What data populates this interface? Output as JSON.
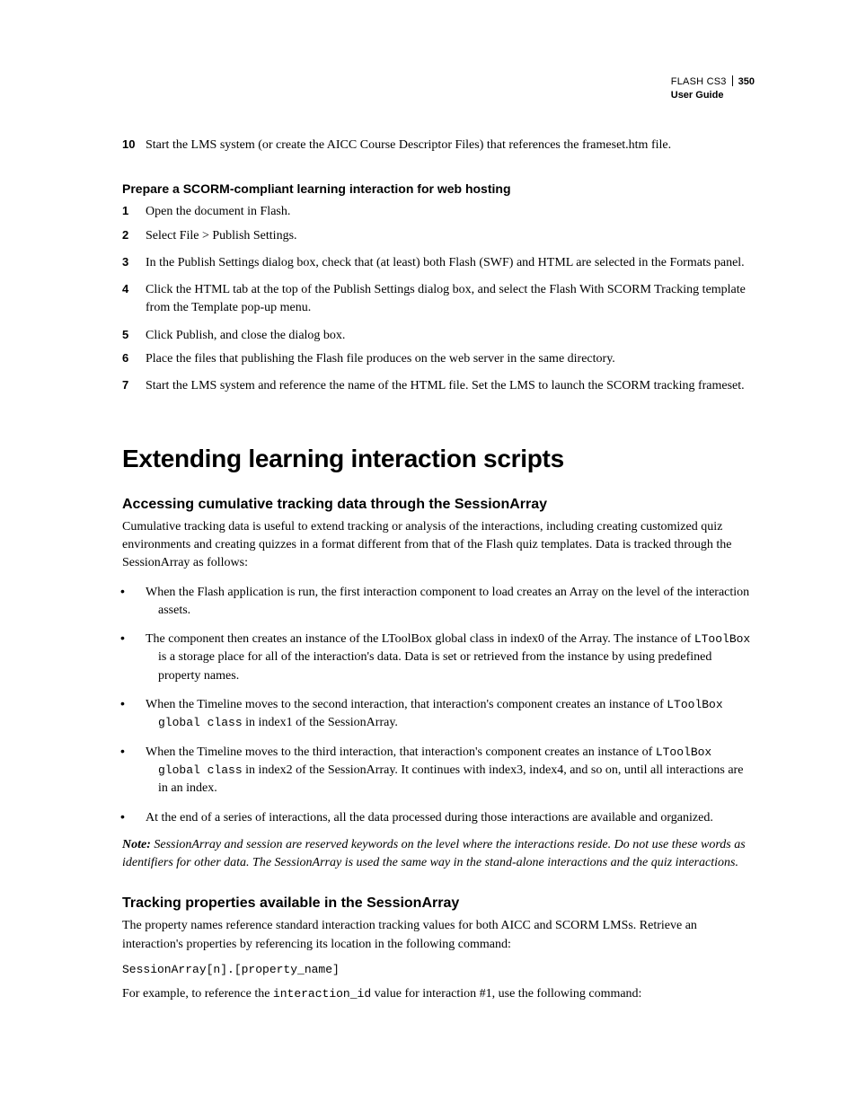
{
  "header": {
    "product": "FLASH CS3",
    "page_number": "350",
    "subtitle": "User Guide"
  },
  "intro_step": {
    "num": "10",
    "text": "Start the LMS system (or create the AICC Course Descriptor Files) that references the frameset.htm file."
  },
  "scorm_section": {
    "heading": "Prepare a SCORM-compliant learning interaction for web hosting",
    "steps": [
      {
        "num": "1",
        "text": "Open the document in Flash."
      },
      {
        "num": "2",
        "text": "Select File > Publish Settings."
      },
      {
        "num": "3",
        "text": "In the Publish Settings dialog box, check that (at least) both Flash (SWF) and HTML are selected in the Formats panel."
      },
      {
        "num": "4",
        "text": "Click the HTML tab at the top of the Publish Settings dialog box, and select the Flash With SCORM Tracking template from the Template pop-up menu."
      },
      {
        "num": "5",
        "text": "Click Publish, and close the dialog box."
      },
      {
        "num": "6",
        "text": "Place the files that publishing the Flash file produces on the web server in the same directory."
      },
      {
        "num": "7",
        "text": "Start the LMS system and reference the name of the HTML file. Set the LMS to launch the SCORM tracking frameset."
      }
    ]
  },
  "h1": "Extending learning interaction scripts",
  "sessionarray": {
    "heading": "Accessing cumulative tracking data through the SessionArray",
    "intro": "Cumulative tracking data is useful to extend tracking or analysis of the interactions, including creating customized quiz environments and creating quizzes in a format different from that of the Flash quiz templates. Data is tracked through the SessionArray as follows:",
    "bullets": {
      "b0": "When the Flash application is run, the first interaction component to load creates an Array on the level of the interaction assets.",
      "b1_a": "The component then creates an instance of the LToolBox global class in index0 of the Array. The instance of ",
      "b1_code": "LToolBox",
      "b1_b": " is a storage place for all of the interaction's data. Data is set or retrieved from the instance by using predefined property names.",
      "b2_a": "When the Timeline moves to the second interaction, that interaction's component creates an instance of ",
      "b2_code": "LToolBox global class",
      "b2_b": " in index1 of the SessionArray.",
      "b3_a": "When the Timeline moves to the third interaction, that interaction's component creates an instance of ",
      "b3_code": "LToolBox global class",
      "b3_b": " in index2 of the SessionArray. It continues with index3, index4, and so on, until all interactions are in an index.",
      "b4": "At the end of a series of interactions, all the data processed during those interactions are available and organized."
    },
    "note_label": "Note:",
    "note_body": "  SessionArray and session are reserved keywords on the level where the interactions reside. Do not use these words as identifiers for other data. The SessionArray is used the same way in the stand-alone interactions and the quiz interactions."
  },
  "tracking": {
    "heading": "Tracking properties available in the SessionArray",
    "intro": "The property names reference standard interaction tracking values for both AICC and SCORM LMSs. Retrieve an interaction's properties by referencing its location in the following command:",
    "code1": "SessionArray[n].[property_name]",
    "ex_a": "For example, to reference the ",
    "ex_code": "interaction_id",
    "ex_b": " value for interaction #1, use the following command:"
  }
}
